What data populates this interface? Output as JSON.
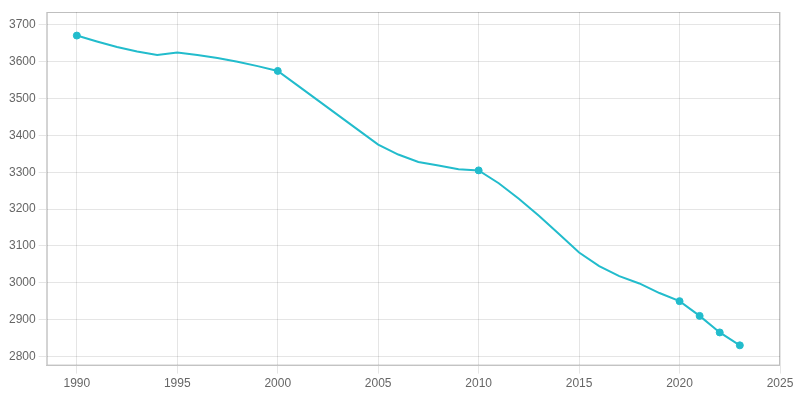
{
  "chart_data": {
    "type": "line",
    "series": [
      {
        "type": "line",
        "color": "#22BCCC",
        "line_style": "solid",
        "x": [
          1990,
          1991,
          1992,
          1993,
          1994,
          1995,
          1996,
          1997,
          1998,
          1999,
          2000,
          2001,
          2002,
          2003,
          2004,
          2005,
          2006,
          2007,
          2008,
          2009,
          2010,
          2011,
          2012,
          2013,
          2014,
          2015,
          2016,
          2017,
          2018,
          2019,
          2020,
          2021,
          2022,
          2023
        ],
        "values": [
          3671,
          3655,
          3640,
          3628,
          3618,
          3625,
          3618,
          3610,
          3600,
          3588,
          3575,
          3535,
          3495,
          3455,
          3415,
          3375,
          3348,
          3328,
          3318,
          3308,
          3305,
          3270,
          3228,
          3182,
          3132,
          3082,
          3045,
          3018,
          2998,
          2972,
          2950,
          2910,
          2865,
          2830
        ]
      },
      {
        "type": "scatter",
        "color": "#22BCCC",
        "marker": "circle",
        "x": [
          1990,
          2000,
          2010,
          2020,
          2021,
          2022,
          2023
        ],
        "values": [
          3671,
          3575,
          3305,
          2950,
          2910,
          2865,
          2830
        ]
      }
    ],
    "xlim": [
      1988.5,
      2025
    ],
    "xticks": [
      1990,
      1995,
      2000,
      2005,
      2010,
      2015,
      2020,
      2025
    ],
    "ylim": [
      2775,
      3735
    ],
    "yticks": [
      2800,
      2900,
      3000,
      3100,
      3200,
      3300,
      3400,
      3500,
      3600,
      3700
    ],
    "grid": true
  }
}
